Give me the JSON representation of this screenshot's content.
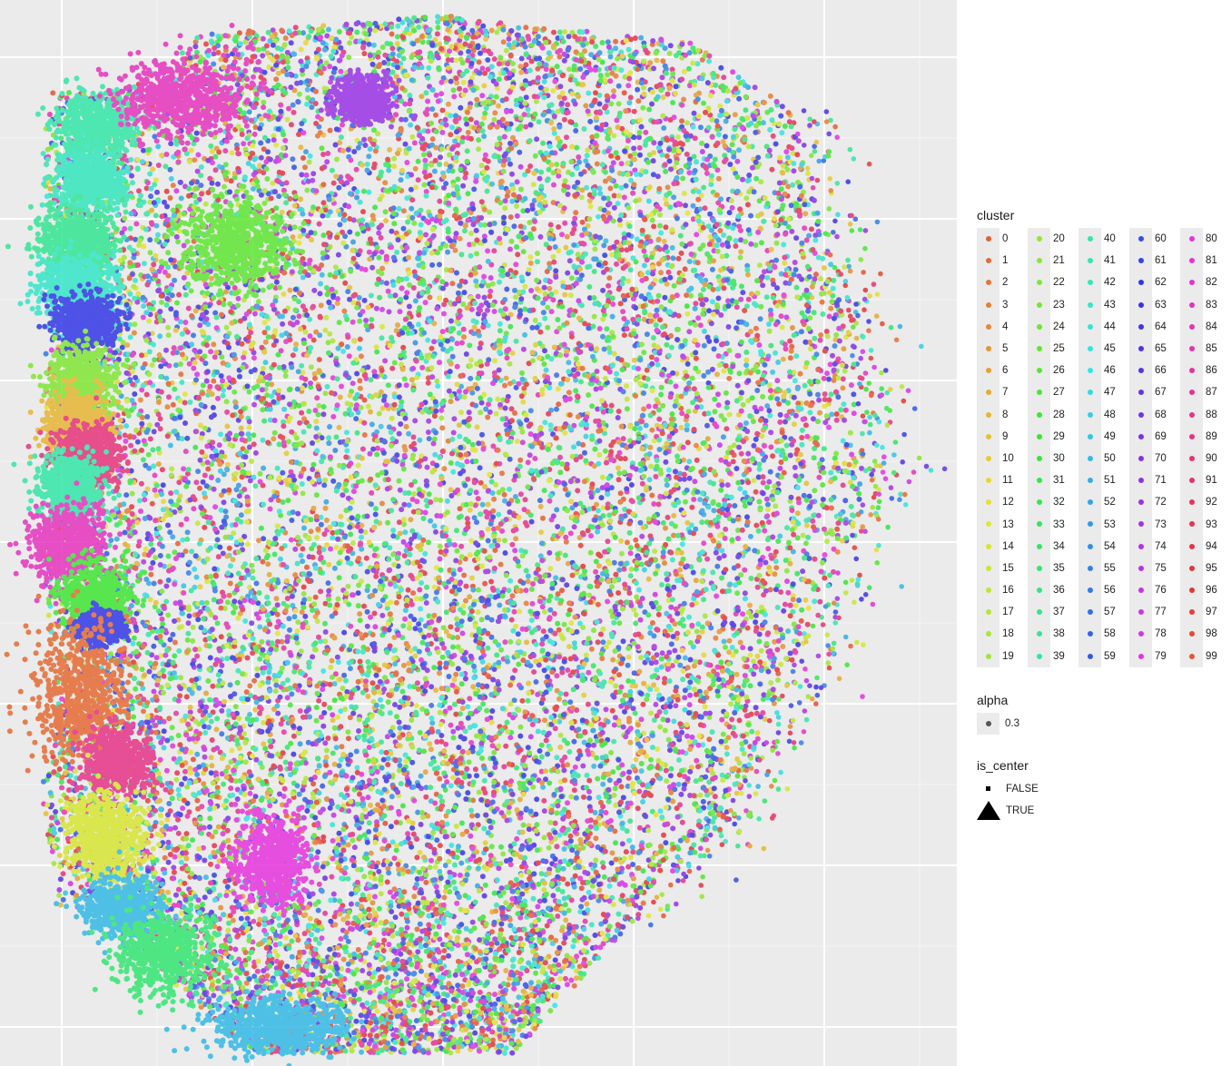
{
  "chart_data": {
    "type": "scatter",
    "title": "",
    "xlabel": "",
    "ylabel": "",
    "grid": true,
    "legend_position": "right",
    "point_count_estimate": "very dense (hundreds of thousands of points)",
    "legends": [
      {
        "title": "cluster",
        "entries": [
          "0",
          "1",
          "2",
          "3",
          "4",
          "5",
          "6",
          "7",
          "8",
          "9",
          "10",
          "11",
          "12",
          "13",
          "14",
          "15",
          "16",
          "17",
          "18",
          "19",
          "20",
          "21",
          "22",
          "23",
          "24",
          "25",
          "26",
          "27",
          "28",
          "29",
          "30",
          "31",
          "32",
          "33",
          "34",
          "35",
          "36",
          "37",
          "38",
          "39",
          "40",
          "41",
          "42",
          "43",
          "44",
          "45",
          "46",
          "47",
          "48",
          "49",
          "50",
          "51",
          "52",
          "53",
          "54",
          "55",
          "56",
          "57",
          "58",
          "59",
          "60",
          "61",
          "62",
          "63",
          "64",
          "65",
          "66",
          "67",
          "68",
          "69",
          "70",
          "71",
          "72",
          "73",
          "74",
          "75",
          "76",
          "77",
          "78",
          "79",
          "80",
          "81",
          "82",
          "83",
          "84",
          "85",
          "86",
          "87",
          "88",
          "89",
          "90",
          "91",
          "92",
          "93",
          "94",
          "95",
          "96",
          "97",
          "98",
          "99"
        ],
        "color_scale": "hue",
        "columns": 5,
        "rows_per_column": 20
      },
      {
        "title": "alpha",
        "entries": [
          "0.3"
        ]
      },
      {
        "title": "is_center",
        "entries": [
          "FALSE",
          "TRUE"
        ],
        "shapes": [
          "small-square",
          "triangle"
        ]
      }
    ]
  }
}
